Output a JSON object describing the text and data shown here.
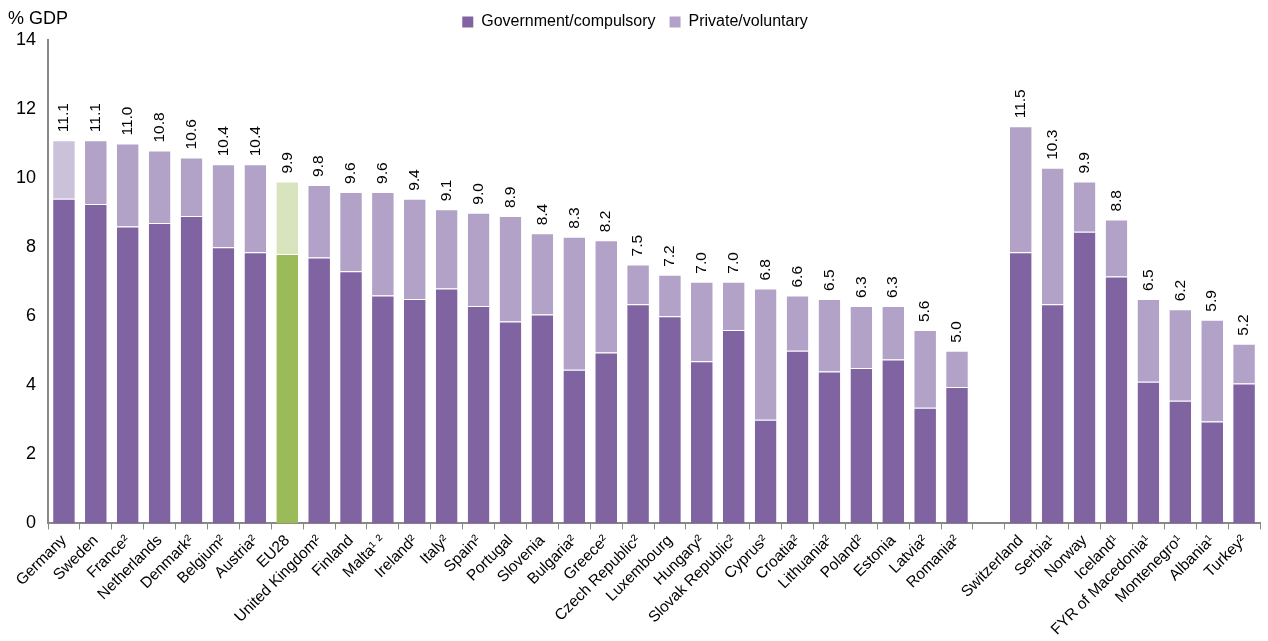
{
  "chart_data": {
    "type": "bar",
    "stacked": true,
    "ylabel": "% GDP",
    "legend": "top",
    "categories": [
      "Germany",
      "Sweden",
      "France²",
      "Netherlands",
      "Denmark²",
      "Belgium²",
      "Austria²",
      "EU28",
      "United Kingdom²",
      "Finland",
      "Malta¹ ²",
      "Ireland²",
      "Italy²",
      "Spain²",
      "Portugal",
      "Slovenia",
      "Bulgaria²",
      "Greece²",
      "Czech Republic²",
      "Luxembourg",
      "Hungary²",
      "Slovak Republic²",
      "Cyprus²",
      "Croatia²",
      "Lithuania²",
      "Poland²",
      "Estonia",
      "Latvia²",
      "Romania²",
      null,
      "Switzerland",
      "Serbia¹",
      "Norway",
      "Iceland¹",
      "FYR of Macedonia¹",
      "Montenegro¹",
      "Albania¹",
      "Turkey²"
    ],
    "series": [
      {
        "name": "Government/compulsory",
        "color": "#8064a2",
        "colors": [
          "#8064a2",
          "#8064a2",
          "#8064a2",
          "#8064a2",
          "#8064a2",
          "#8064a2",
          "#8064a2",
          "#9bbb59",
          "#8064a2",
          "#8064a2",
          "#8064a2",
          "#8064a2",
          "#8064a2",
          "#8064a2",
          "#8064a2",
          "#8064a2",
          "#8064a2",
          "#8064a2",
          "#8064a2",
          "#8064a2",
          "#8064a2",
          "#8064a2",
          "#8064a2",
          "#8064a2",
          "#8064a2",
          "#8064a2",
          "#8064a2",
          "#8064a2",
          "#8064a2",
          "#8064a2",
          "#8064a2",
          "#8064a2",
          "#8064a2",
          "#8064a2",
          "#8064a2",
          "#8064a2",
          "#8064a2",
          "#8064a2"
        ],
        "values": [
          9.4,
          9.25,
          8.6,
          8.7,
          8.9,
          8.0,
          7.85,
          7.8,
          7.7,
          7.3,
          6.6,
          6.5,
          6.8,
          6.3,
          5.85,
          6.05,
          4.45,
          4.95,
          6.35,
          6.0,
          4.7,
          5.6,
          3.0,
          5.0,
          4.4,
          4.5,
          4.75,
          3.35,
          3.95,
          null,
          7.85,
          6.35,
          8.45,
          7.15,
          4.1,
          3.55,
          2.95,
          4.05
        ]
      },
      {
        "name": "Private/voluntary",
        "color": "#b3a2c7",
        "colors": [
          "#ccc1da",
          "#b3a2c7",
          "#b3a2c7",
          "#b3a2c7",
          "#b3a2c7",
          "#b3a2c7",
          "#b3a2c7",
          "#d7e4bd",
          "#b3a2c7",
          "#b3a2c7",
          "#b3a2c7",
          "#b3a2c7",
          "#b3a2c7",
          "#b3a2c7",
          "#b3a2c7",
          "#b3a2c7",
          "#b3a2c7",
          "#b3a2c7",
          "#b3a2c7",
          "#b3a2c7",
          "#b3a2c7",
          "#b3a2c7",
          "#b3a2c7",
          "#b3a2c7",
          "#b3a2c7",
          "#b3a2c7",
          "#b3a2c7",
          "#b3a2c7",
          "#b3a2c7",
          "#b3a2c7",
          "#b3a2c7",
          "#b3a2c7",
          "#b3a2c7",
          "#b3a2c7",
          "#b3a2c7",
          "#b3a2c7",
          "#b3a2c7",
          "#b3a2c7"
        ],
        "values": [
          1.7,
          1.85,
          2.4,
          2.1,
          1.7,
          2.4,
          2.55,
          2.1,
          2.1,
          2.3,
          3.0,
          2.9,
          2.3,
          2.7,
          3.05,
          2.35,
          3.85,
          3.25,
          1.15,
          1.2,
          2.3,
          1.4,
          3.8,
          1.6,
          2.1,
          1.8,
          1.55,
          2.25,
          1.05,
          null,
          3.65,
          3.95,
          1.45,
          1.65,
          2.4,
          2.65,
          2.95,
          1.15
        ]
      }
    ],
    "totals": [
      "11.1",
      "11.1",
      "11.0",
      "10.8",
      "10.6",
      "10.4",
      "10.4",
      "9.9",
      "9.8",
      "9.6",
      "9.6",
      "9.4",
      "9.1",
      "9.0",
      "8.9",
      "8.4",
      "8.3",
      "8.2",
      "7.5",
      "7.2",
      "7.0",
      "7.0",
      "6.8",
      "6.6",
      "6.5",
      "6.3",
      "6.3",
      "5.6",
      "5.0",
      null,
      "11.5",
      "10.3",
      "9.9",
      "8.8",
      "6.5",
      "6.2",
      "5.9",
      "5.2"
    ],
    "ylim": [
      0,
      14
    ],
    "yticks": [
      0,
      2,
      4,
      6,
      8,
      10,
      12,
      14
    ],
    "grid": false
  }
}
